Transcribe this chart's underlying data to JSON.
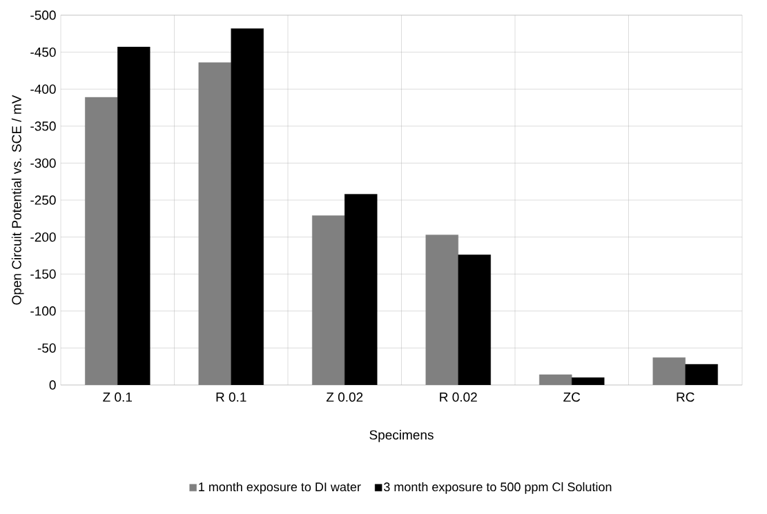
{
  "chart_data": {
    "type": "bar",
    "xlabel": "Specimens",
    "ylabel": "Open Circuit Potential vs. SCE  / mV",
    "categories": [
      "Z 0.1",
      "R 0.1",
      "Z 0.02",
      "R 0.02",
      "ZC",
      "RC"
    ],
    "series": [
      {
        "name": "1 month exposure to DI water",
        "color": "#808080",
        "values": [
          -389,
          -436,
          -229,
          -203,
          -14,
          -37
        ]
      },
      {
        "name": "3 month exposure to 500 ppm Cl Solution",
        "color": "#000000",
        "values": [
          -457,
          -482,
          -258,
          -176,
          -10,
          -28
        ]
      }
    ],
    "ylim": [
      0,
      -500
    ],
    "yticks": [
      0,
      -50,
      -100,
      -150,
      -200,
      -250,
      -300,
      -350,
      -400,
      -450,
      -500
    ],
    "grid": true,
    "legend": "bottom"
  }
}
